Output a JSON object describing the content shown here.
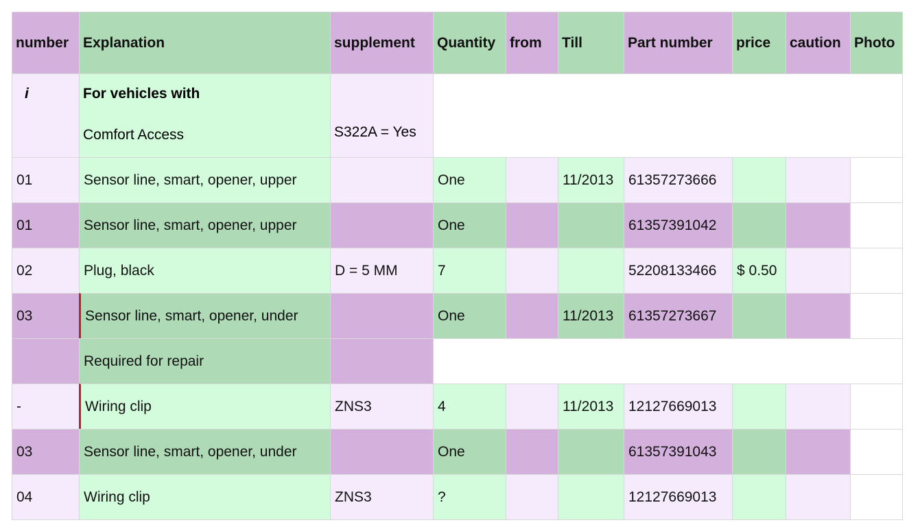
{
  "table": {
    "columns": [
      "number",
      "Explanation",
      "supplement",
      "Quantity",
      "from",
      "Till",
      "Part number",
      "price",
      "caution",
      "Photo"
    ],
    "note": {
      "number": "i",
      "title": "For vehicles with",
      "text": "Comfort Access",
      "supplement": "S322A = Yes"
    },
    "rows": [
      [
        "01",
        "Sensor line, smart, opener, upper",
        null,
        "One",
        null,
        "11/2013",
        "61357273666",
        null,
        null,
        null
      ],
      [
        "01",
        "Sensor line, smart, opener, upper",
        null,
        "One",
        null,
        null,
        "61357391042",
        null,
        null,
        null
      ],
      [
        "02",
        "Plug, black",
        "D = 5 MM",
        "7",
        null,
        null,
        "52208133466",
        "$ 0.50",
        null,
        null
      ],
      [
        "03",
        "Sensor line, smart, opener, under",
        null,
        "One",
        null,
        "11/2013",
        "61357273667",
        null,
        null,
        null
      ],
      {
        "explanation": "Required for repair"
      },
      [
        "-",
        "Wiring clip",
        "ZNS3",
        "4",
        null,
        "11/2013",
        "12127669013",
        null,
        null,
        null
      ],
      [
        "03",
        "Sensor line, smart, opener, under",
        null,
        "One",
        null,
        null,
        "61357391043",
        null,
        null,
        null
      ],
      [
        "04",
        "Wiring clip",
        "ZNS3",
        "?",
        null,
        null,
        "12127669013",
        null,
        null,
        null
      ]
    ]
  }
}
